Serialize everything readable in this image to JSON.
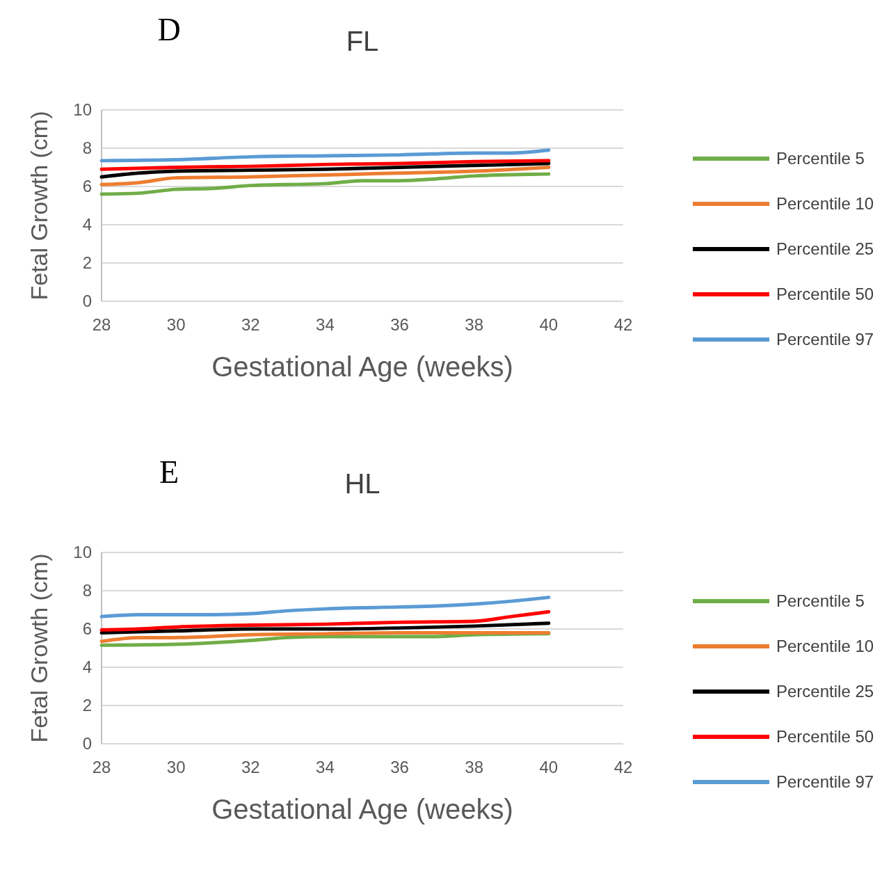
{
  "chart_data": [
    {
      "type": "line",
      "title": "FL",
      "annotations": [
        "D"
      ],
      "xlabel": "Gestational Age (weeks)",
      "ylabel": "Fetal Growth (cm)",
      "xlim": [
        28,
        42
      ],
      "xticks": [
        28,
        30,
        32,
        34,
        36,
        38,
        40,
        42
      ],
      "ylim": [
        0,
        10
      ],
      "yticks": [
        0,
        2,
        4,
        6,
        8,
        10
      ],
      "grid": "y",
      "legend": "right",
      "series": [
        {
          "name": "Percentile 5",
          "color": "#70ad47",
          "x": [
            28,
            29,
            30,
            31,
            32,
            34,
            35,
            36,
            37,
            38,
            40
          ],
          "values": [
            5.6,
            5.65,
            5.85,
            5.9,
            6.05,
            6.15,
            6.3,
            6.3,
            6.4,
            6.55,
            6.65
          ]
        },
        {
          "name": "Percentile 10",
          "color": "#ed7d31",
          "x": [
            28,
            29,
            30,
            32,
            34,
            36,
            38,
            40
          ],
          "values": [
            6.1,
            6.2,
            6.45,
            6.5,
            6.6,
            6.7,
            6.8,
            7.0
          ]
        },
        {
          "name": "Percentile 25",
          "color": "#000000",
          "x": [
            28,
            29,
            30,
            32,
            34,
            36,
            38,
            40
          ],
          "values": [
            6.5,
            6.7,
            6.8,
            6.85,
            6.9,
            7.0,
            7.1,
            7.2
          ]
        },
        {
          "name": "Percentile 50",
          "color": "#ff0000",
          "x": [
            28,
            30,
            32,
            34,
            36,
            38,
            40
          ],
          "values": [
            6.9,
            7.0,
            7.05,
            7.15,
            7.2,
            7.3,
            7.35
          ]
        },
        {
          "name": "Percentile 97",
          "color": "#5b9bd5",
          "x": [
            28,
            30,
            32,
            34,
            36,
            38,
            39,
            40
          ],
          "values": [
            7.35,
            7.4,
            7.55,
            7.6,
            7.65,
            7.75,
            7.75,
            7.9
          ]
        }
      ]
    },
    {
      "type": "line",
      "title": "HL",
      "annotations": [
        "E"
      ],
      "xlabel": "Gestational Age (weeks)",
      "ylabel": "Fetal Growth (cm)",
      "xlim": [
        28,
        42
      ],
      "xticks": [
        28,
        30,
        32,
        34,
        36,
        38,
        40,
        42
      ],
      "ylim": [
        0,
        10
      ],
      "yticks": [
        0,
        2,
        4,
        6,
        8,
        10
      ],
      "grid": "y",
      "legend": "right",
      "series": [
        {
          "name": "Percentile 5",
          "color": "#70ad47",
          "x": [
            28,
            30,
            32,
            33,
            34,
            36,
            37,
            38,
            40
          ],
          "values": [
            5.15,
            5.2,
            5.4,
            5.55,
            5.6,
            5.6,
            5.6,
            5.7,
            5.75
          ]
        },
        {
          "name": "Percentile 10",
          "color": "#ed7d31",
          "x": [
            28,
            29,
            30,
            32,
            34,
            36,
            38,
            40
          ],
          "values": [
            5.35,
            5.55,
            5.55,
            5.7,
            5.75,
            5.8,
            5.8,
            5.8
          ]
        },
        {
          "name": "Percentile 25",
          "color": "#000000",
          "x": [
            28,
            30,
            32,
            34,
            36,
            38,
            40
          ],
          "values": [
            5.8,
            5.9,
            6.0,
            6.0,
            6.05,
            6.15,
            6.3
          ]
        },
        {
          "name": "Percentile 50",
          "color": "#ff0000",
          "x": [
            28,
            29,
            30,
            32,
            34,
            35,
            36,
            38,
            39,
            40
          ],
          "values": [
            5.95,
            6.0,
            6.1,
            6.2,
            6.25,
            6.3,
            6.35,
            6.4,
            6.65,
            6.9
          ]
        },
        {
          "name": "Percentile 97",
          "color": "#5b9bd5",
          "x": [
            28,
            29,
            30,
            31,
            32,
            33,
            34,
            36,
            37,
            38,
            39,
            40
          ],
          "values": [
            6.65,
            6.75,
            6.75,
            6.75,
            6.8,
            6.95,
            7.05,
            7.15,
            7.2,
            7.3,
            7.45,
            7.65
          ]
        }
      ]
    }
  ]
}
